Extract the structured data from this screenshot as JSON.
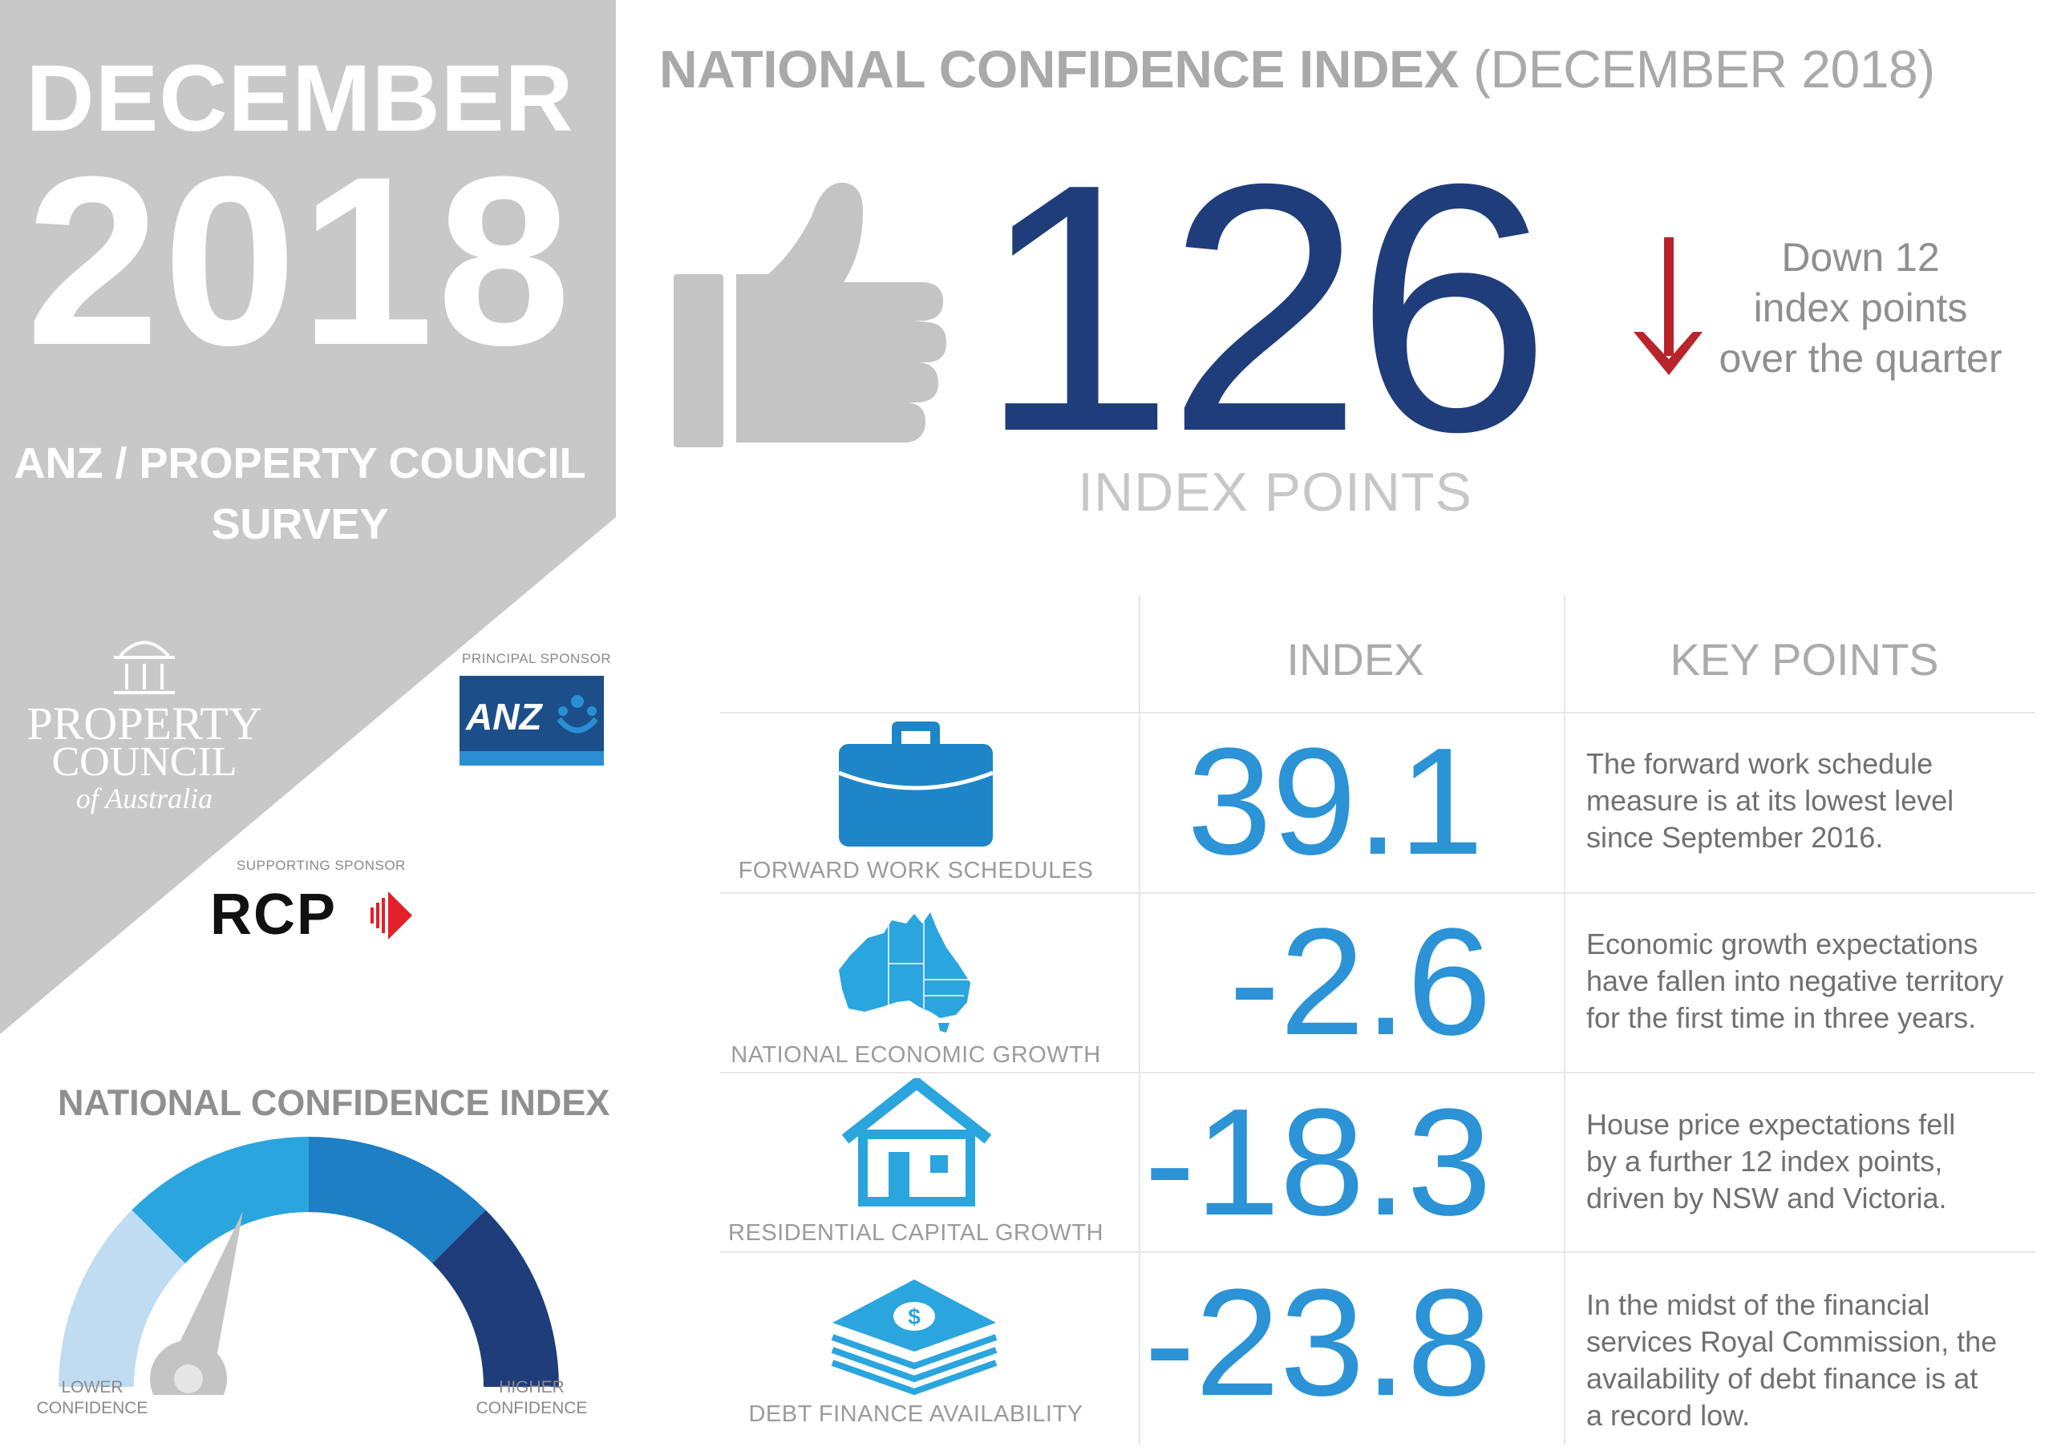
{
  "left_panel": {
    "month": "DECEMBER",
    "year": "2018",
    "survey_line1": "ANZ / PROPERTY COUNCIL",
    "survey_line2": "SURVEY",
    "pca_logo_line1": "PROPERTY",
    "pca_logo_line2": "COUNCIL",
    "pca_logo_line3": "of Australia",
    "principal_sponsor_label": "PRINCIPAL SPONSOR",
    "anz_logo_text": "ANZ",
    "supporting_sponsor_label": "SUPPORTING SPONSOR",
    "rcp_logo_text": "RCP"
  },
  "header": {
    "title_bold": "NATIONAL CONFIDENCE INDEX",
    "title_light": "(DECEMBER 2018)",
    "index_value": "126",
    "index_unit": "INDEX POINTS",
    "change_line1": "Down 12",
    "change_line2": "index points",
    "change_line3": "over the quarter",
    "change_direction": "down"
  },
  "table": {
    "col_index": "INDEX",
    "col_key_points": "KEY POINTS",
    "rows": [
      {
        "icon": "briefcase-icon",
        "label": "FORWARD WORK SCHEDULES",
        "value": "39.1",
        "text": [
          "The forward work schedule",
          "measure is at its lowest level",
          "since September 2016."
        ]
      },
      {
        "icon": "australia-map-icon",
        "label": "NATIONAL ECONOMIC GROWTH",
        "value": "-2.6",
        "text": [
          "Economic growth expectations",
          "have fallen into negative territory",
          "for the first time in three years."
        ]
      },
      {
        "icon": "house-icon",
        "label": "RESIDENTIAL CAPITAL GROWTH",
        "value": "-18.3",
        "text": [
          "House price expectations fell",
          "by a further 12 index points,",
          "driven by NSW and Victoria."
        ]
      },
      {
        "icon": "cash-stack-icon",
        "label": "DEBT FINANCE AVAILABILITY",
        "value": "-23.8",
        "text": [
          "In the midst of the financial",
          "services Royal Commission, the",
          "availability of debt finance is at",
          "a record low."
        ]
      }
    ]
  },
  "gauge": {
    "title": "NATIONAL CONFIDENCE INDEX",
    "lower_line1": "LOWER",
    "lower_line2": "CONFIDENCE",
    "higher_line1": "HIGHER",
    "higher_line2": "CONFIDENCE",
    "needle_fraction": 0.6
  },
  "colors": {
    "dark_navy": "#1f3d7a",
    "value_blue": "#2b93d6",
    "icon_blue": "#1e86c8",
    "light_blue": "#2aa5de",
    "down_arrow_red": "#b8242a",
    "panel_grey": "#c8c8c8",
    "gauge_segments": [
      "#c0dcf2",
      "#2aa5de",
      "#1e7fc4",
      "#1f3d7a"
    ]
  }
}
